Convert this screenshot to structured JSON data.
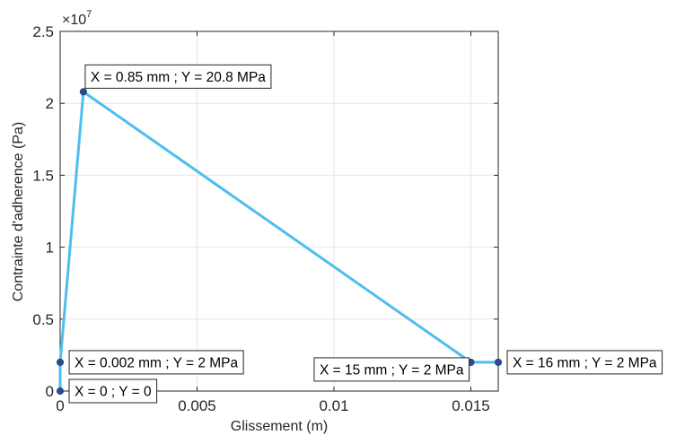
{
  "chart_data": {
    "type": "line",
    "xlabel": "Glissement (m)",
    "ylabel": "Contrainte d'adherence (Pa)",
    "y_exponent_label": "×10",
    "y_exponent_power": "7",
    "xlim": [
      0,
      0.016
    ],
    "ylim": [
      0,
      25000000
    ],
    "grid": true,
    "x_ticks": [
      {
        "value": 0,
        "label": "0"
      },
      {
        "value": 0.005,
        "label": "0.005"
      },
      {
        "value": 0.01,
        "label": "0.01"
      },
      {
        "value": 0.015,
        "label": "0.015"
      }
    ],
    "y_ticks": [
      {
        "value": 0,
        "label": "0"
      },
      {
        "value": 5000000,
        "label": "0.5"
      },
      {
        "value": 10000000,
        "label": "1"
      },
      {
        "value": 15000000,
        "label": "1.5"
      },
      {
        "value": 20000000,
        "label": "2"
      },
      {
        "value": 25000000,
        "label": "2.5"
      }
    ],
    "series": [
      {
        "color": "#4dbeee",
        "marker_color": "#2b4c8c",
        "x": [
          0,
          2e-06,
          0.00085,
          0.015,
          0.016
        ],
        "y": [
          0,
          2000000,
          20800000,
          2000000,
          2000000
        ]
      }
    ],
    "annotations": [
      {
        "text": "X = 0 ; Y = 0",
        "x": 0,
        "y": 0,
        "anchor": "right"
      },
      {
        "text": "X = 0.002 mm ; Y = 2 MPa",
        "x": 2e-06,
        "y": 2000000,
        "anchor": "right"
      },
      {
        "text": "X = 0.85 mm ; Y = 20.8 MPa",
        "x": 0.00085,
        "y": 20800000,
        "anchor": "above-right"
      },
      {
        "text": "X = 15 mm ; Y = 2 MPa",
        "x": 0.015,
        "y": 2000000,
        "anchor": "below-left"
      },
      {
        "text": "X = 16 mm ; Y = 2 MPa",
        "x": 0.016,
        "y": 2000000,
        "anchor": "right"
      }
    ]
  }
}
